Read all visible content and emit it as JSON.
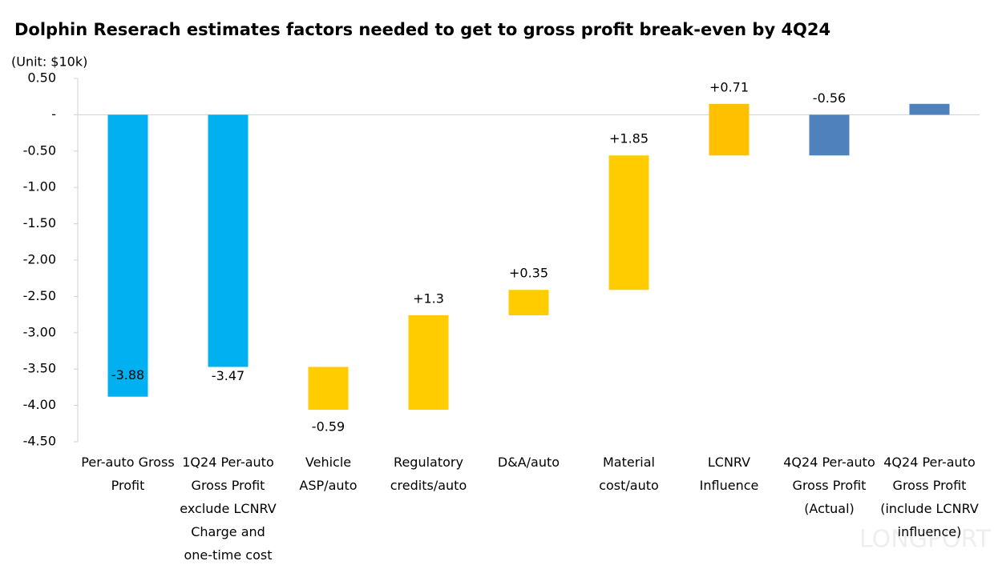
{
  "chart_data": {
    "type": "waterfall",
    "title": "Dolphin Reserach estimates factors needed to get to gross profit break-even by 4Q24",
    "y_unit_label": "(Unit: $10k)",
    "watermark": "LONGPORT",
    "categories": [
      "Per-auto Gross Profit",
      "1Q24 Per-auto Gross Profit exclude LCNRV Charge and one-time cost",
      "Vehicle ASP/auto",
      "Regulatory credits/auto",
      "D&A/auto",
      "Material cost/auto",
      "LCNRV Influence",
      "4Q24 Per-auto Gross Profit (Actual)",
      "4Q24 Per-auto Gross Profit (include LCNRV influence)"
    ],
    "measure": [
      "total",
      "total",
      "relative",
      "relative",
      "relative",
      "relative",
      "relative",
      "total",
      "total"
    ],
    "values": [
      -3.88,
      -3.47,
      -0.59,
      1.3,
      0.35,
      1.85,
      0.71,
      -0.56,
      0.15
    ],
    "value_labels": [
      "-3.88",
      "-3.47",
      "-0.59",
      "+1.3",
      "+0.35",
      "+1.85",
      "+0.71",
      "-0.56",
      null
    ],
    "colors": [
      "#00b0f0",
      "#00b0f0",
      "#ffcc00",
      "#ffcc00",
      "#ffcc00",
      "#ffcc00",
      "#ffc000",
      "#4f81bd",
      "#4f81bd"
    ],
    "ylim": [
      -4.5,
      0.5
    ],
    "yticks": [
      {
        "value": 0.5,
        "label": "0.50"
      },
      {
        "value": 0,
        "label": "-"
      },
      {
        "value": -0.5,
        "label": "-0.50"
      },
      {
        "value": -1,
        "label": "-1.00"
      },
      {
        "value": -1.5,
        "label": "-1.50"
      },
      {
        "value": -2,
        "label": "-2.00"
      },
      {
        "value": -2.5,
        "label": "-2.50"
      },
      {
        "value": -3,
        "label": "-3.00"
      },
      {
        "value": -3.5,
        "label": "-3.50"
      },
      {
        "value": -4,
        "label": "-4.00"
      },
      {
        "value": -4.5,
        "label": "-4.50"
      }
    ]
  }
}
